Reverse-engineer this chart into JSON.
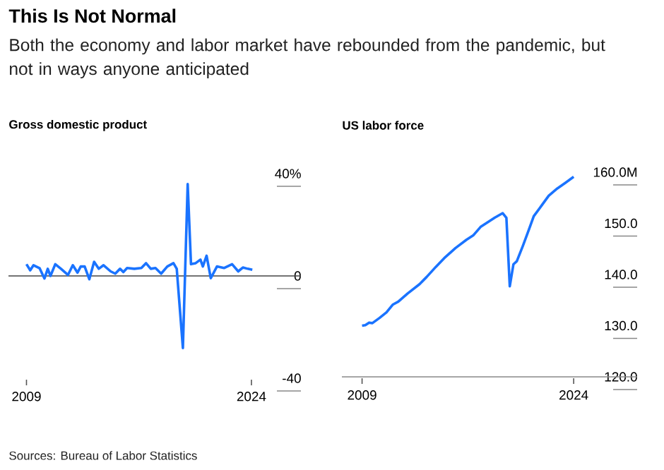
{
  "chart_data": [
    {
      "type": "other",
      "title": "This Is Not Normal",
      "subtitle": "Both the economy and labor market have rebounded from the pandemic, but not in ways anyone anticipated",
      "annotations": [
        "Sources: Bureau of Labor Statistics"
      ]
    },
    {
      "type": "line",
      "title": "Gross domestic product",
      "xlim": [
        2007.8,
        2027.3
      ],
      "xticks": [
        2009,
        2024
      ],
      "ylim": [
        -40,
        40
      ],
      "yticks": [
        {
          "value": 40,
          "label": "40%"
        },
        0,
        -40
      ],
      "ref_lines": [
        {
          "axis": "y",
          "value": 0,
          "color": "#444444"
        }
      ],
      "series": [
        {
          "color": "#1a73ff",
          "x": [
            2009.0,
            2009.25,
            2009.47,
            2009.88,
            2010.2,
            2010.42,
            2010.6,
            2010.92,
            2011.3,
            2011.77,
            2012.09,
            2012.4,
            2012.62,
            2012.88,
            2013.19,
            2013.51,
            2013.82,
            2014.14,
            2014.61,
            2014.92,
            2015.24,
            2015.46,
            2015.71,
            2016.19,
            2016.66,
            2016.97,
            2017.29,
            2017.6,
            2017.98,
            2018.39,
            2018.8,
            2019.02,
            2019.43,
            2019.75,
            2019.97,
            2020.28,
            2020.6,
            2020.76,
            2021.01,
            2021.29,
            2021.7,
            2022.17,
            2022.71,
            2023.12,
            2023.43,
            2023.75,
            2024.06
          ],
          "values": [
            4.6,
            2.2,
            4.2,
            3,
            -1,
            2.8,
            0,
            4.6,
            2.8,
            0.4,
            4.2,
            1.3,
            3.7,
            3.7,
            -1.3,
            5.5,
            2.8,
            4.2,
            1.8,
            0.9,
            2.8,
            1.5,
            3.1,
            2.8,
            3.1,
            5,
            2.8,
            3.1,
            0.9,
            3.7,
            5,
            2.8,
            -28.2,
            35.9,
            4.6,
            5,
            6.4,
            3.7,
            7.9,
            -0.9,
            3.7,
            3.1,
            4.6,
            1.8,
            3.3,
            2.8,
            2.4
          ]
        }
      ]
    },
    {
      "type": "line",
      "title": "US labor force",
      "xlim": [
        2007.57,
        2028.5
      ],
      "xticks": [
        2009,
        2024
      ],
      "ylim": [
        120,
        160
      ],
      "yticks": [
        {
          "value": 160,
          "label": "160.0M"
        },
        {
          "value": 150,
          "label": "150.0"
        },
        {
          "value": 140,
          "label": "140.0"
        },
        {
          "value": 130,
          "label": "130.0"
        },
        {
          "value": 120,
          "label": "120.0"
        }
      ],
      "series": [
        {
          "color": "#1a73ff",
          "x": [
            2009.0,
            2009.23,
            2009.5,
            2009.73,
            2010.23,
            2010.73,
            2011.17,
            2011.57,
            2012.23,
            2013.07,
            2013.57,
            2014.23,
            2014.9,
            2015.63,
            2016.4,
            2016.9,
            2017.4,
            2017.9,
            2018.4,
            2018.97,
            2019.23,
            2019.47,
            2019.73,
            2019.97,
            2020.4,
            2020.83,
            2021.17,
            2021.73,
            2022.23,
            2022.83,
            2023.4,
            2024.0
          ],
          "values": [
            130.0,
            130.1,
            130.6,
            130.5,
            131.5,
            132.6,
            134.1,
            134.7,
            136.3,
            138.1,
            139.5,
            141.5,
            143.4,
            145.2,
            146.8,
            147.7,
            149.3,
            150.2,
            151.1,
            152.0,
            151.1,
            137.7,
            142.0,
            142.6,
            145.6,
            148.8,
            151.4,
            153.5,
            155.4,
            156.8,
            157.9,
            159.1
          ]
        }
      ]
    }
  ]
}
